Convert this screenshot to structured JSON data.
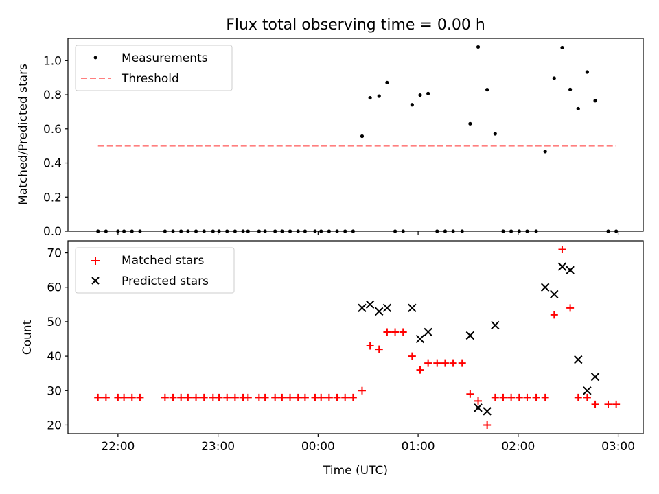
{
  "title": "Flux total observing time = 0.00 h",
  "colors": {
    "measurement": "#000000",
    "threshold": "#ff7f7f",
    "matched": "#ff0000",
    "predicted": "#000000"
  },
  "chart_data": [
    {
      "type": "scatter",
      "title": "Flux total observing time = 0.00 h",
      "xlabel": "",
      "ylabel": "Matched/Predicted stars",
      "x_unit": "hours since 00:00 UTC",
      "xlim": [
        -2.5,
        3.25
      ],
      "ylim": [
        0.0,
        1.13
      ],
      "yticks": [
        0.0,
        0.2,
        0.4,
        0.6,
        0.8,
        1.0
      ],
      "ytick_labels": [
        "0.0",
        "0.2",
        "0.4",
        "0.6",
        "0.8",
        "1.0"
      ],
      "grid": false,
      "legend_position": "top-left",
      "series": [
        {
          "name": "Measurements",
          "marker": "dot",
          "points": [
            [
              -2.2,
              0.0
            ],
            [
              -2.12,
              0.0
            ],
            [
              -2.0,
              0.0
            ],
            [
              -1.94,
              0.0
            ],
            [
              -1.86,
              0.0
            ],
            [
              -1.78,
              0.0
            ],
            [
              -1.53,
              0.0
            ],
            [
              -1.45,
              0.0
            ],
            [
              -1.37,
              0.0
            ],
            [
              -1.3,
              0.0
            ],
            [
              -1.22,
              0.0
            ],
            [
              -1.14,
              0.0
            ],
            [
              -1.05,
              0.0
            ],
            [
              -0.99,
              0.0
            ],
            [
              -0.91,
              0.0
            ],
            [
              -0.83,
              0.0
            ],
            [
              -0.75,
              0.0
            ],
            [
              -0.7,
              0.0
            ],
            [
              -0.59,
              0.0
            ],
            [
              -0.53,
              0.0
            ],
            [
              -0.43,
              0.0
            ],
            [
              -0.36,
              0.0
            ],
            [
              -0.28,
              0.0
            ],
            [
              -0.2,
              0.0
            ],
            [
              -0.13,
              0.0
            ],
            [
              -0.03,
              0.0
            ],
            [
              0.03,
              0.0
            ],
            [
              0.11,
              0.0
            ],
            [
              0.19,
              0.0
            ],
            [
              0.27,
              0.0
            ],
            [
              0.35,
              0.0
            ],
            [
              0.44,
              0.557
            ],
            [
              0.52,
              0.782
            ],
            [
              0.61,
              0.792
            ],
            [
              0.69,
              0.871
            ],
            [
              0.77,
              0.0
            ],
            [
              0.85,
              0.0
            ],
            [
              0.94,
              0.741
            ],
            [
              1.02,
              0.798
            ],
            [
              1.1,
              0.807
            ],
            [
              1.19,
              0.0
            ],
            [
              1.27,
              0.0
            ],
            [
              1.35,
              0.0
            ],
            [
              1.44,
              0.0
            ],
            [
              1.52,
              0.63
            ],
            [
              1.6,
              1.08
            ],
            [
              1.69,
              0.83
            ],
            [
              1.77,
              0.571
            ],
            [
              1.85,
              0.0
            ],
            [
              1.93,
              0.0
            ],
            [
              2.01,
              0.0
            ],
            [
              2.09,
              0.0
            ],
            [
              2.18,
              0.0
            ],
            [
              2.27,
              0.467
            ],
            [
              2.36,
              0.897
            ],
            [
              2.44,
              1.076
            ],
            [
              2.52,
              0.831
            ],
            [
              2.6,
              0.718
            ],
            [
              2.69,
              0.933
            ],
            [
              2.77,
              0.765
            ],
            [
              2.9,
              0.0
            ],
            [
              2.98,
              0.0
            ]
          ]
        },
        {
          "name": "Threshold",
          "style": "dashed",
          "points": [
            [
              -2.2,
              0.5
            ],
            [
              2.98,
              0.5
            ]
          ]
        }
      ]
    },
    {
      "type": "scatter",
      "title": "",
      "xlabel": "Time (UTC)",
      "ylabel": "Count",
      "x_unit": "hours since 00:00 UTC",
      "xlim": [
        -2.5,
        3.25
      ],
      "ylim": [
        17.5,
        73.5
      ],
      "yticks": [
        20,
        30,
        40,
        50,
        60,
        70
      ],
      "ytick_labels": [
        "20",
        "30",
        "40",
        "50",
        "60",
        "70"
      ],
      "xticks": [
        -2,
        -1,
        0,
        1,
        2,
        3
      ],
      "xtick_labels": [
        "22:00",
        "23:00",
        "00:00",
        "01:00",
        "02:00",
        "03:00"
      ],
      "grid": false,
      "legend_position": "top-left",
      "series": [
        {
          "name": "Matched stars",
          "marker": "plus",
          "points": [
            [
              -2.2,
              28
            ],
            [
              -2.12,
              28
            ],
            [
              -2.0,
              28
            ],
            [
              -1.94,
              28
            ],
            [
              -1.86,
              28
            ],
            [
              -1.78,
              28
            ],
            [
              -1.53,
              28
            ],
            [
              -1.45,
              28
            ],
            [
              -1.37,
              28
            ],
            [
              -1.3,
              28
            ],
            [
              -1.22,
              28
            ],
            [
              -1.14,
              28
            ],
            [
              -1.05,
              28
            ],
            [
              -0.99,
              28
            ],
            [
              -0.91,
              28
            ],
            [
              -0.83,
              28
            ],
            [
              -0.75,
              28
            ],
            [
              -0.7,
              28
            ],
            [
              -0.59,
              28
            ],
            [
              -0.53,
              28
            ],
            [
              -0.43,
              28
            ],
            [
              -0.36,
              28
            ],
            [
              -0.28,
              28
            ],
            [
              -0.2,
              28
            ],
            [
              -0.13,
              28
            ],
            [
              -0.03,
              28
            ],
            [
              0.03,
              28
            ],
            [
              0.11,
              28
            ],
            [
              0.19,
              28
            ],
            [
              0.27,
              28
            ],
            [
              0.35,
              28
            ],
            [
              0.44,
              30
            ],
            [
              0.52,
              43
            ],
            [
              0.61,
              42
            ],
            [
              0.69,
              47
            ],
            [
              0.77,
              47
            ],
            [
              0.85,
              47
            ],
            [
              0.94,
              40
            ],
            [
              1.02,
              36
            ],
            [
              1.1,
              38
            ],
            [
              1.19,
              38
            ],
            [
              1.27,
              38
            ],
            [
              1.35,
              38
            ],
            [
              1.44,
              38
            ],
            [
              1.52,
              29
            ],
            [
              1.6,
              27
            ],
            [
              1.69,
              20
            ],
            [
              1.77,
              28
            ],
            [
              1.85,
              28
            ],
            [
              1.93,
              28
            ],
            [
              2.01,
              28
            ],
            [
              2.09,
              28
            ],
            [
              2.18,
              28
            ],
            [
              2.27,
              28
            ],
            [
              2.36,
              52
            ],
            [
              2.44,
              71
            ],
            [
              2.52,
              54
            ],
            [
              2.6,
              28
            ],
            [
              2.69,
              28
            ],
            [
              2.77,
              26
            ],
            [
              2.9,
              26
            ],
            [
              2.98,
              26
            ]
          ]
        },
        {
          "name": "Predicted stars",
          "marker": "x",
          "points": [
            [
              0.44,
              54
            ],
            [
              0.52,
              55
            ],
            [
              0.61,
              53
            ],
            [
              0.69,
              54
            ],
            [
              0.94,
              54
            ],
            [
              1.02,
              45
            ],
            [
              1.1,
              47
            ],
            [
              1.52,
              46
            ],
            [
              1.6,
              25
            ],
            [
              1.69,
              24
            ],
            [
              1.77,
              49
            ],
            [
              2.27,
              60
            ],
            [
              2.36,
              58
            ],
            [
              2.44,
              66
            ],
            [
              2.52,
              65
            ],
            [
              2.6,
              39
            ],
            [
              2.69,
              30
            ],
            [
              2.77,
              34
            ]
          ]
        }
      ]
    }
  ]
}
